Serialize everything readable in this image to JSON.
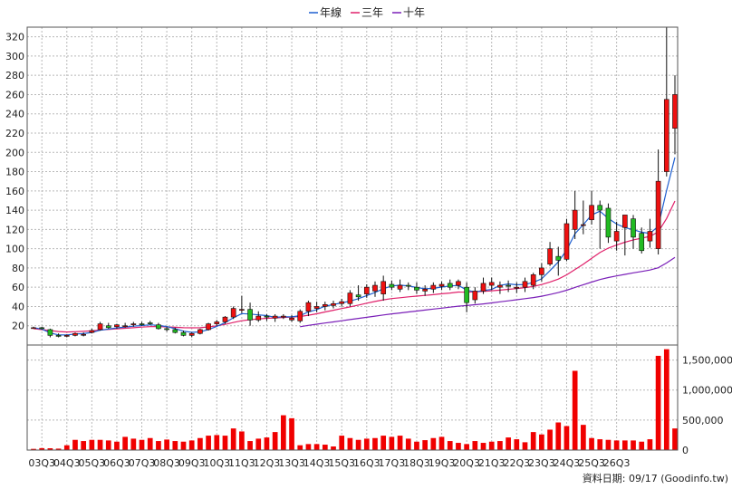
{
  "chart_data": {
    "type": "candlestick",
    "legend": [
      {
        "name": "年線",
        "color": "#1e5fd0"
      },
      {
        "name": "三年",
        "color": "#e0206a"
      },
      {
        "name": "十年",
        "color": "#7a1fb8"
      }
    ],
    "legend_position": "top-center",
    "price_axis": {
      "ylim": [
        0,
        330
      ],
      "ticks": [
        20,
        40,
        60,
        80,
        100,
        120,
        140,
        160,
        180,
        200,
        220,
        240,
        260,
        280,
        300,
        320
      ]
    },
    "volume_axis": {
      "ylim": [
        0,
        1750000
      ],
      "ticks": [
        0,
        500000,
        1000000,
        1500000
      ],
      "tick_labels": [
        "0",
        "500,000",
        "1,000,000",
        "1,500,000"
      ]
    },
    "x_tick_labels": [
      "03Q3",
      "04Q3",
      "05Q3",
      "06Q3",
      "07Q3",
      "08Q3",
      "09Q3",
      "10Q3",
      "11Q3",
      "12Q3",
      "13Q3",
      "14Q3",
      "15Q3",
      "16Q3",
      "17Q3",
      "18Q3",
      "19Q3",
      "20Q3",
      "21Q3",
      "22Q3",
      "23Q3",
      "24Q3",
      "25Q3",
      "26Q3"
    ],
    "grid": true,
    "source_note": "資料日期: 09/17  (Goodinfo.tw)",
    "candles": [
      [
        18,
        19,
        17,
        18
      ],
      [
        18,
        19,
        16,
        17
      ],
      [
        16,
        17,
        8,
        10
      ],
      [
        10,
        12,
        8,
        9
      ],
      [
        9,
        11,
        8,
        10
      ],
      [
        10,
        13,
        9,
        12
      ],
      [
        11,
        13,
        9,
        11
      ],
      [
        13,
        17,
        12,
        15
      ],
      [
        16,
        24,
        15,
        22
      ],
      [
        20,
        23,
        17,
        18
      ],
      [
        19,
        22,
        17,
        21
      ],
      [
        20,
        23,
        18,
        20
      ],
      [
        21,
        24,
        19,
        22
      ],
      [
        22,
        24,
        20,
        21
      ],
      [
        23,
        25,
        21,
        22
      ],
      [
        21,
        23,
        16,
        17
      ],
      [
        17,
        19,
        14,
        16
      ],
      [
        16,
        18,
        12,
        13
      ],
      [
        13,
        15,
        9,
        10
      ],
      [
        10,
        13,
        8,
        12
      ],
      [
        12,
        17,
        11,
        16
      ],
      [
        16,
        23,
        15,
        22
      ],
      [
        22,
        26,
        20,
        24
      ],
      [
        24,
        30,
        22,
        29
      ],
      [
        29,
        40,
        27,
        38
      ],
      [
        36,
        51,
        33,
        37
      ],
      [
        37,
        44,
        20,
        26
      ],
      [
        26,
        35,
        24,
        30
      ],
      [
        30,
        32,
        25,
        29
      ],
      [
        28,
        32,
        24,
        30
      ],
      [
        29,
        32,
        27,
        30
      ],
      [
        26,
        31,
        24,
        28
      ],
      [
        25,
        37,
        23,
        35
      ],
      [
        35,
        46,
        30,
        44
      ],
      [
        38,
        45,
        34,
        40
      ],
      [
        40,
        45,
        36,
        42
      ],
      [
        41,
        46,
        38,
        43
      ],
      [
        43,
        48,
        40,
        45
      ],
      [
        43,
        57,
        40,
        54
      ],
      [
        52,
        62,
        46,
        50
      ],
      [
        53,
        63,
        49,
        60
      ],
      [
        56,
        66,
        50,
        62
      ],
      [
        53,
        72,
        46,
        66
      ],
      [
        63,
        67,
        57,
        60
      ],
      [
        58,
        68,
        55,
        62
      ],
      [
        62,
        65,
        57,
        61
      ],
      [
        60,
        65,
        53,
        57
      ],
      [
        56,
        62,
        51,
        58
      ],
      [
        58,
        65,
        54,
        62
      ],
      [
        61,
        66,
        57,
        63
      ],
      [
        64,
        68,
        57,
        60
      ],
      [
        62,
        68,
        58,
        66
      ],
      [
        60,
        65,
        34,
        44
      ],
      [
        47,
        60,
        43,
        56
      ],
      [
        56,
        70,
        53,
        64
      ],
      [
        62,
        70,
        57,
        65
      ],
      [
        60,
        66,
        53,
        62
      ],
      [
        62,
        67,
        55,
        61
      ],
      [
        59,
        65,
        54,
        60
      ],
      [
        60,
        70,
        55,
        66
      ],
      [
        62,
        75,
        58,
        73
      ],
      [
        73,
        85,
        66,
        80
      ],
      [
        84,
        107,
        82,
        100
      ],
      [
        92,
        102,
        72,
        88
      ],
      [
        89,
        131,
        87,
        126
      ],
      [
        120,
        160,
        110,
        140
      ],
      [
        125,
        150,
        115,
        125
      ],
      [
        130,
        160,
        125,
        145
      ],
      [
        145,
        150,
        100,
        140
      ],
      [
        142,
        147,
        106,
        112
      ],
      [
        108,
        128,
        98,
        118
      ],
      [
        122,
        135,
        93,
        135
      ],
      [
        131,
        135,
        100,
        112
      ],
      [
        116,
        122,
        95,
        98
      ],
      [
        108,
        131,
        101,
        118
      ],
      [
        100,
        203,
        94,
        170
      ],
      [
        180,
        330,
        175,
        255
      ],
      [
        225,
        280,
        198,
        260
      ]
    ],
    "volumes": [
      20000,
      32000,
      30000,
      24000,
      80000,
      170000,
      150000,
      170000,
      170000,
      160000,
      140000,
      220000,
      190000,
      170000,
      200000,
      150000,
      175000,
      150000,
      140000,
      160000,
      200000,
      240000,
      250000,
      240000,
      360000,
      310000,
      150000,
      190000,
      210000,
      300000,
      580000,
      530000,
      80000,
      100000,
      100000,
      90000,
      60000,
      240000,
      200000,
      170000,
      190000,
      200000,
      240000,
      220000,
      240000,
      190000,
      140000,
      165000,
      200000,
      220000,
      150000,
      120000,
      100000,
      150000,
      120000,
      140000,
      150000,
      210000,
      180000,
      130000,
      300000,
      260000,
      340000,
      460000,
      400000,
      1320000,
      420000,
      200000,
      180000,
      170000,
      160000,
      160000,
      160000,
      140000,
      180000,
      1570000,
      1680000,
      360000
    ],
    "ma_year": [
      18,
      16.5,
      12.5,
      10.5,
      10.4,
      11.5,
      11.8,
      13.1,
      15.3,
      16.5,
      17.8,
      18.7,
      19.6,
      20.2,
      21,
      20.4,
      19.2,
      16.9,
      14.4,
      13.2,
      13.6,
      16.1,
      19.4,
      23.2,
      28.3,
      32.6,
      32.2,
      31.3,
      30.6,
      28.8,
      29.3,
      29.2,
      30.5,
      34.3,
      36.8,
      40.3,
      42,
      43.8,
      45.5,
      48.1,
      51.3,
      54.5,
      58.5,
      61.3,
      62.1,
      61.4,
      59.7,
      58.4,
      58.9,
      60.2,
      61.3,
      61.9,
      57.1,
      55.1,
      56.5,
      57.7,
      61.9,
      63.5,
      62.5,
      62.8,
      65.1,
      68.7,
      77.3,
      86.3,
      98.6,
      115.5,
      125,
      135,
      139,
      131.5,
      125.6,
      121.9,
      119.7,
      117.1,
      115.8,
      123.3,
      160.5,
      194.8
    ],
    "ma_3y": [
      17,
      16,
      15,
      14,
      13.5,
      13.8,
      14.2,
      14.8,
      15.6,
      16.2,
      16.8,
      17.4,
      18,
      18.6,
      19.1,
      19.2,
      18.8,
      18.4,
      18,
      17.9,
      18,
      18.8,
      19.9,
      21.4,
      23.4,
      25.2,
      26.3,
      27.1,
      27.7,
      28.1,
      28.6,
      29,
      29.6,
      30.9,
      32.4,
      34.3,
      36.1,
      37.9,
      39.6,
      41.5,
      43.4,
      45.2,
      46.9,
      48.2,
      49.1,
      50,
      50.8,
      51.5,
      52.3,
      53.2,
      54,
      55,
      54.8,
      55.2,
      55.7,
      56.3,
      57,
      57.8,
      58.6,
      59.6,
      60.8,
      62.8,
      65.4,
      68.4,
      72.9,
      78.4,
      84,
      90,
      96,
      100.6,
      103.8,
      106.7,
      109.2,
      110.9,
      112.7,
      117.5,
      131.3,
      149.5
    ],
    "ma_10y": [
      null,
      null,
      null,
      null,
      null,
      null,
      null,
      null,
      null,
      null,
      null,
      null,
      null,
      null,
      null,
      null,
      null,
      null,
      null,
      null,
      null,
      null,
      null,
      null,
      null,
      null,
      null,
      null,
      null,
      null,
      null,
      null,
      19,
      20.4,
      21.6,
      22.8,
      24,
      25.2,
      26.4,
      27.6,
      28.8,
      30,
      31.2,
      32.3,
      33.3,
      34.3,
      35.3,
      36.3,
      37.3,
      38.3,
      39.3,
      40.3,
      41,
      41.8,
      42.7,
      43.7,
      44.8,
      45.9,
      47,
      48.1,
      49.3,
      50.7,
      52.5,
      54.4,
      56.9,
      59.8,
      62.6,
      65.3,
      68,
      70,
      71.7,
      73.3,
      74.9,
      76.3,
      77.8,
      80.2,
      85.2,
      90.9
    ]
  }
}
